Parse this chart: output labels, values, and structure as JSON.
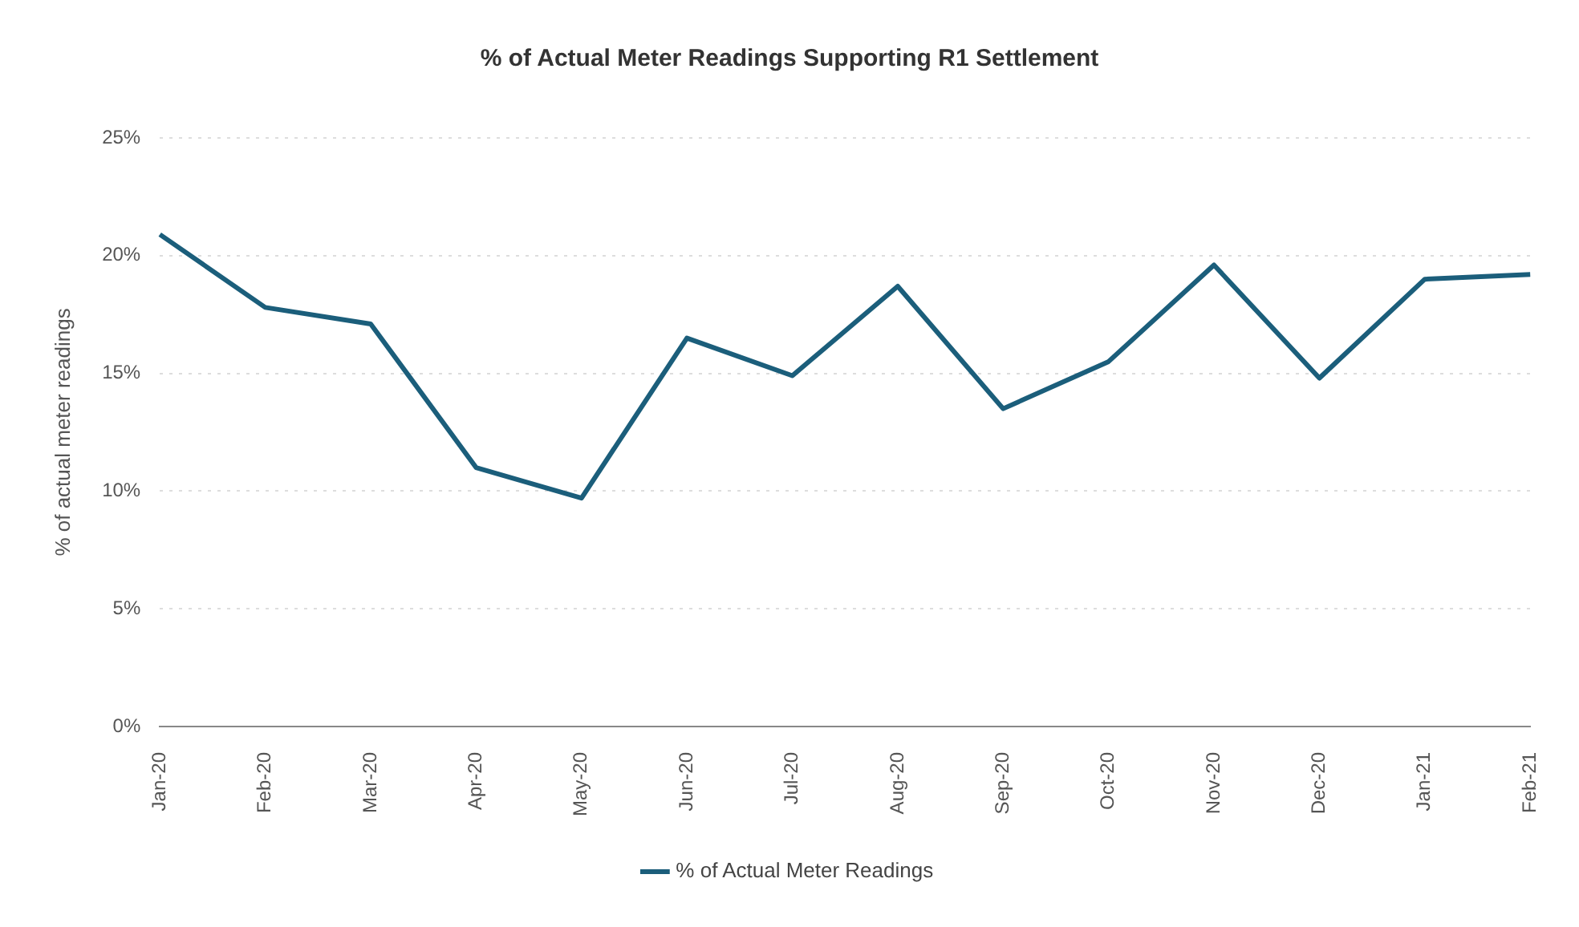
{
  "chart_data": {
    "type": "line",
    "title": "% of Actual Meter Readings Supporting R1 Settlement",
    "ylabel": "% of actual meter readings",
    "categories": [
      "Jan-20",
      "Feb-20",
      "Mar-20",
      "Apr-20",
      "May-20",
      "Jun-20",
      "Jul-20",
      "Aug-20",
      "Sep-20",
      "Oct-20",
      "Nov-20",
      "Dec-20",
      "Jan-21",
      "Feb-21"
    ],
    "series": [
      {
        "name": "% of Actual Meter Readings",
        "color": "#1b5e7b",
        "values": [
          20.9,
          17.8,
          17.1,
          11.0,
          9.7,
          16.5,
          14.9,
          18.7,
          13.5,
          15.5,
          19.6,
          14.8,
          19.0,
          19.2
        ]
      }
    ],
    "ylim": [
      0,
      25
    ],
    "yticks": [
      {
        "value": 0,
        "label": "0%"
      },
      {
        "value": 5,
        "label": "5%"
      },
      {
        "value": 10,
        "label": "10%"
      },
      {
        "value": 15,
        "label": "15%"
      },
      {
        "value": 20,
        "label": "20%"
      },
      {
        "value": 25,
        "label": "25%"
      }
    ],
    "grid": "y",
    "legend": "bottom",
    "marker": "none",
    "line_style": "solid"
  }
}
